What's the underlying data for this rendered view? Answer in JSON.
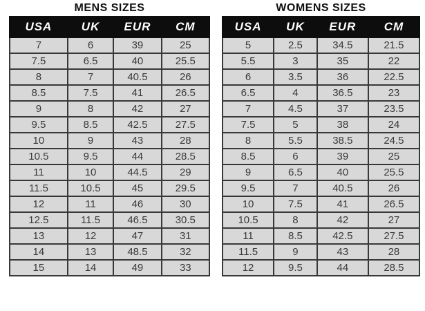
{
  "chart_data": [
    {
      "type": "table",
      "title": "MENS SIZES",
      "columns": [
        "USA",
        "UK",
        "EUR",
        "CM"
      ],
      "rows": [
        [
          "7",
          "6",
          "39",
          "25"
        ],
        [
          "7.5",
          "6.5",
          "40",
          "25.5"
        ],
        [
          "8",
          "7",
          "40.5",
          "26"
        ],
        [
          "8.5",
          "7.5",
          "41",
          "26.5"
        ],
        [
          "9",
          "8",
          "42",
          "27"
        ],
        [
          "9.5",
          "8.5",
          "42.5",
          "27.5"
        ],
        [
          "10",
          "9",
          "43",
          "28"
        ],
        [
          "10.5",
          "9.5",
          "44",
          "28.5"
        ],
        [
          "11",
          "10",
          "44.5",
          "29"
        ],
        [
          "11.5",
          "10.5",
          "45",
          "29.5"
        ],
        [
          "12",
          "11",
          "46",
          "30"
        ],
        [
          "12.5",
          "11.5",
          "46.5",
          "30.5"
        ],
        [
          "13",
          "12",
          "47",
          "31"
        ],
        [
          "14",
          "13",
          "48.5",
          "32"
        ],
        [
          "15",
          "14",
          "49",
          "33"
        ]
      ]
    },
    {
      "type": "table",
      "title": "WOMENS SIZES",
      "columns": [
        "USA",
        "UK",
        "EUR",
        "CM"
      ],
      "rows": [
        [
          "5",
          "2.5",
          "34.5",
          "21.5"
        ],
        [
          "5.5",
          "3",
          "35",
          "22"
        ],
        [
          "6",
          "3.5",
          "36",
          "22.5"
        ],
        [
          "6.5",
          "4",
          "36.5",
          "23"
        ],
        [
          "7",
          "4.5",
          "37",
          "23.5"
        ],
        [
          "7.5",
          "5",
          "38",
          "24"
        ],
        [
          "8",
          "5.5",
          "38.5",
          "24.5"
        ],
        [
          "8.5",
          "6",
          "39",
          "25"
        ],
        [
          "9",
          "6.5",
          "40",
          "25.5"
        ],
        [
          "9.5",
          "7",
          "40.5",
          "26"
        ],
        [
          "10",
          "7.5",
          "41",
          "26.5"
        ],
        [
          "10.5",
          "8",
          "42",
          "27"
        ],
        [
          "11",
          "8.5",
          "42.5",
          "27.5"
        ],
        [
          "11.5",
          "9",
          "43",
          "28"
        ],
        [
          "12",
          "9.5",
          "44",
          "28.5"
        ]
      ]
    }
  ],
  "colors": {
    "page_bg": "#ffffff",
    "header_bg": "#0d0d0d",
    "header_text": "#ffffff",
    "row_bg": "#d8d8d8",
    "row_text": "#3a3a3a",
    "border": "#383838",
    "title_text": "#111111"
  }
}
